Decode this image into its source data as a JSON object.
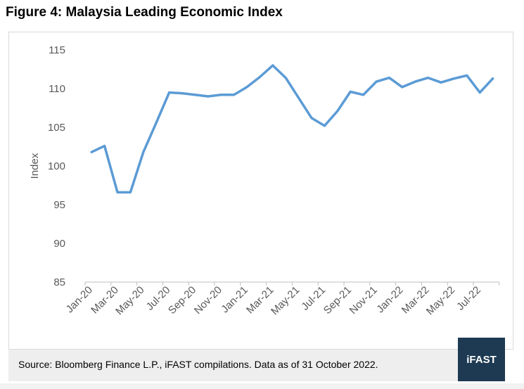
{
  "figure": {
    "title": "Figure 4: Malaysia Leading Economic Index"
  },
  "source": {
    "text": "Source: Bloomberg Finance L.P., iFAST compilations. Data as of 31 October 2022."
  },
  "logo": {
    "text": "iFAST"
  },
  "colors": {
    "line": "#5b9bd5",
    "axis": "#bfbfbf",
    "tick_text": "#595959",
    "logo_bg": "#1d3a52",
    "source_bg": "#eeeeee"
  },
  "chart_data": {
    "type": "line",
    "title": "",
    "xlabel": "",
    "ylabel": "Index",
    "ylim": [
      85,
      115
    ],
    "yticks": [
      85,
      90,
      95,
      100,
      105,
      110,
      115
    ],
    "grid": false,
    "x": [
      "Jan-20",
      "Feb-20",
      "Mar-20",
      "Apr-20",
      "May-20",
      "Jun-20",
      "Jul-20",
      "Aug-20",
      "Sep-20",
      "Oct-20",
      "Nov-20",
      "Dec-20",
      "Jan-21",
      "Feb-21",
      "Mar-21",
      "Apr-21",
      "May-21",
      "Jun-21",
      "Jul-21",
      "Aug-21",
      "Sep-21",
      "Oct-21",
      "Nov-21",
      "Dec-21",
      "Jan-22",
      "Feb-22",
      "Mar-22",
      "Apr-22",
      "May-22",
      "Jun-22",
      "Jul-22",
      "Aug-22"
    ],
    "xtick_labels": [
      "Jan-20",
      "Mar-20",
      "May-20",
      "Jul-20",
      "Sep-20",
      "Nov-20",
      "Jan-21",
      "Mar-21",
      "May-21",
      "Jul-21",
      "Sep-21",
      "Nov-21",
      "Jan-22",
      "Mar-22",
      "May-22",
      "Jul-22"
    ],
    "series": [
      {
        "values": [
          101.8,
          102.6,
          96.6,
          96.6,
          101.8,
          105.6,
          109.5,
          109.4,
          109.2,
          109.0,
          109.2,
          109.2,
          110.2,
          111.5,
          113.0,
          111.4,
          108.8,
          106.2,
          105.2,
          107.1,
          109.6,
          109.2,
          110.9,
          111.4,
          110.2,
          110.9,
          111.4,
          110.8,
          111.3,
          111.7,
          109.5,
          111.3
        ]
      }
    ]
  }
}
